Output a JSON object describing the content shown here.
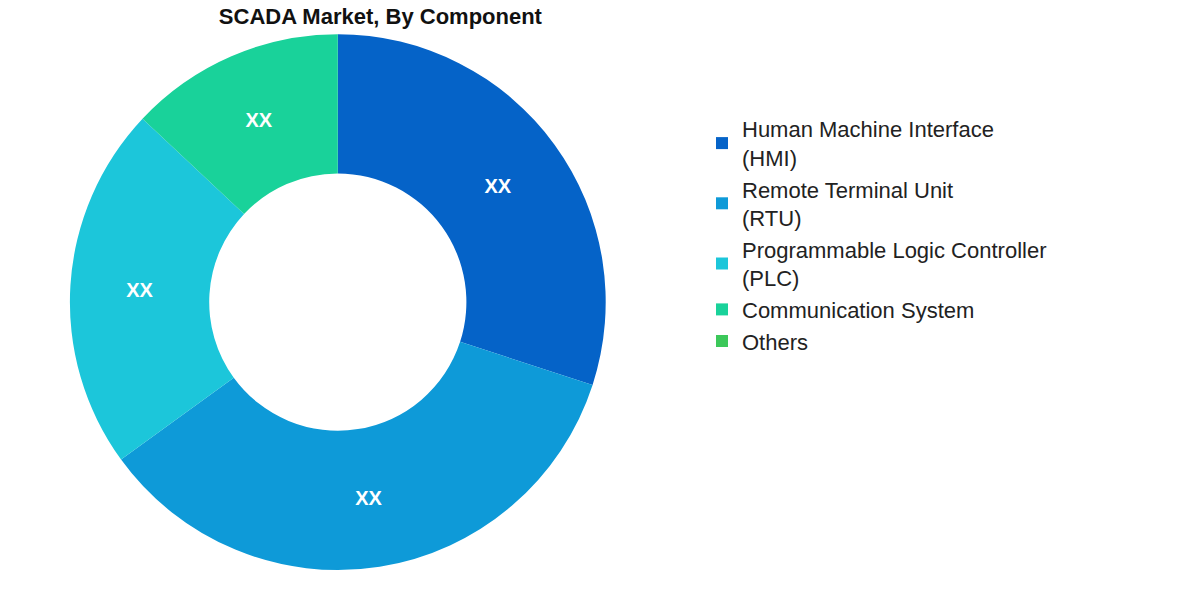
{
  "chart_data": {
    "type": "pie",
    "title": "SCADA Market, By Component",
    "categories": [
      "Human Machine Interface (HMI)",
      "Remote Terminal Unit (RTU)",
      "Programmable Logic Controller (PLC)",
      "Communication System",
      "Others"
    ],
    "values": [
      30,
      35,
      22,
      13,
      0
    ],
    "value_labels": [
      "XX",
      "XX",
      "XX",
      "XX",
      null
    ],
    "colors": [
      "#0563c8",
      "#0e9ad8",
      "#1cc6da",
      "#19d29a",
      "#3cc85a"
    ],
    "data_labels": true,
    "legend": "right"
  }
}
